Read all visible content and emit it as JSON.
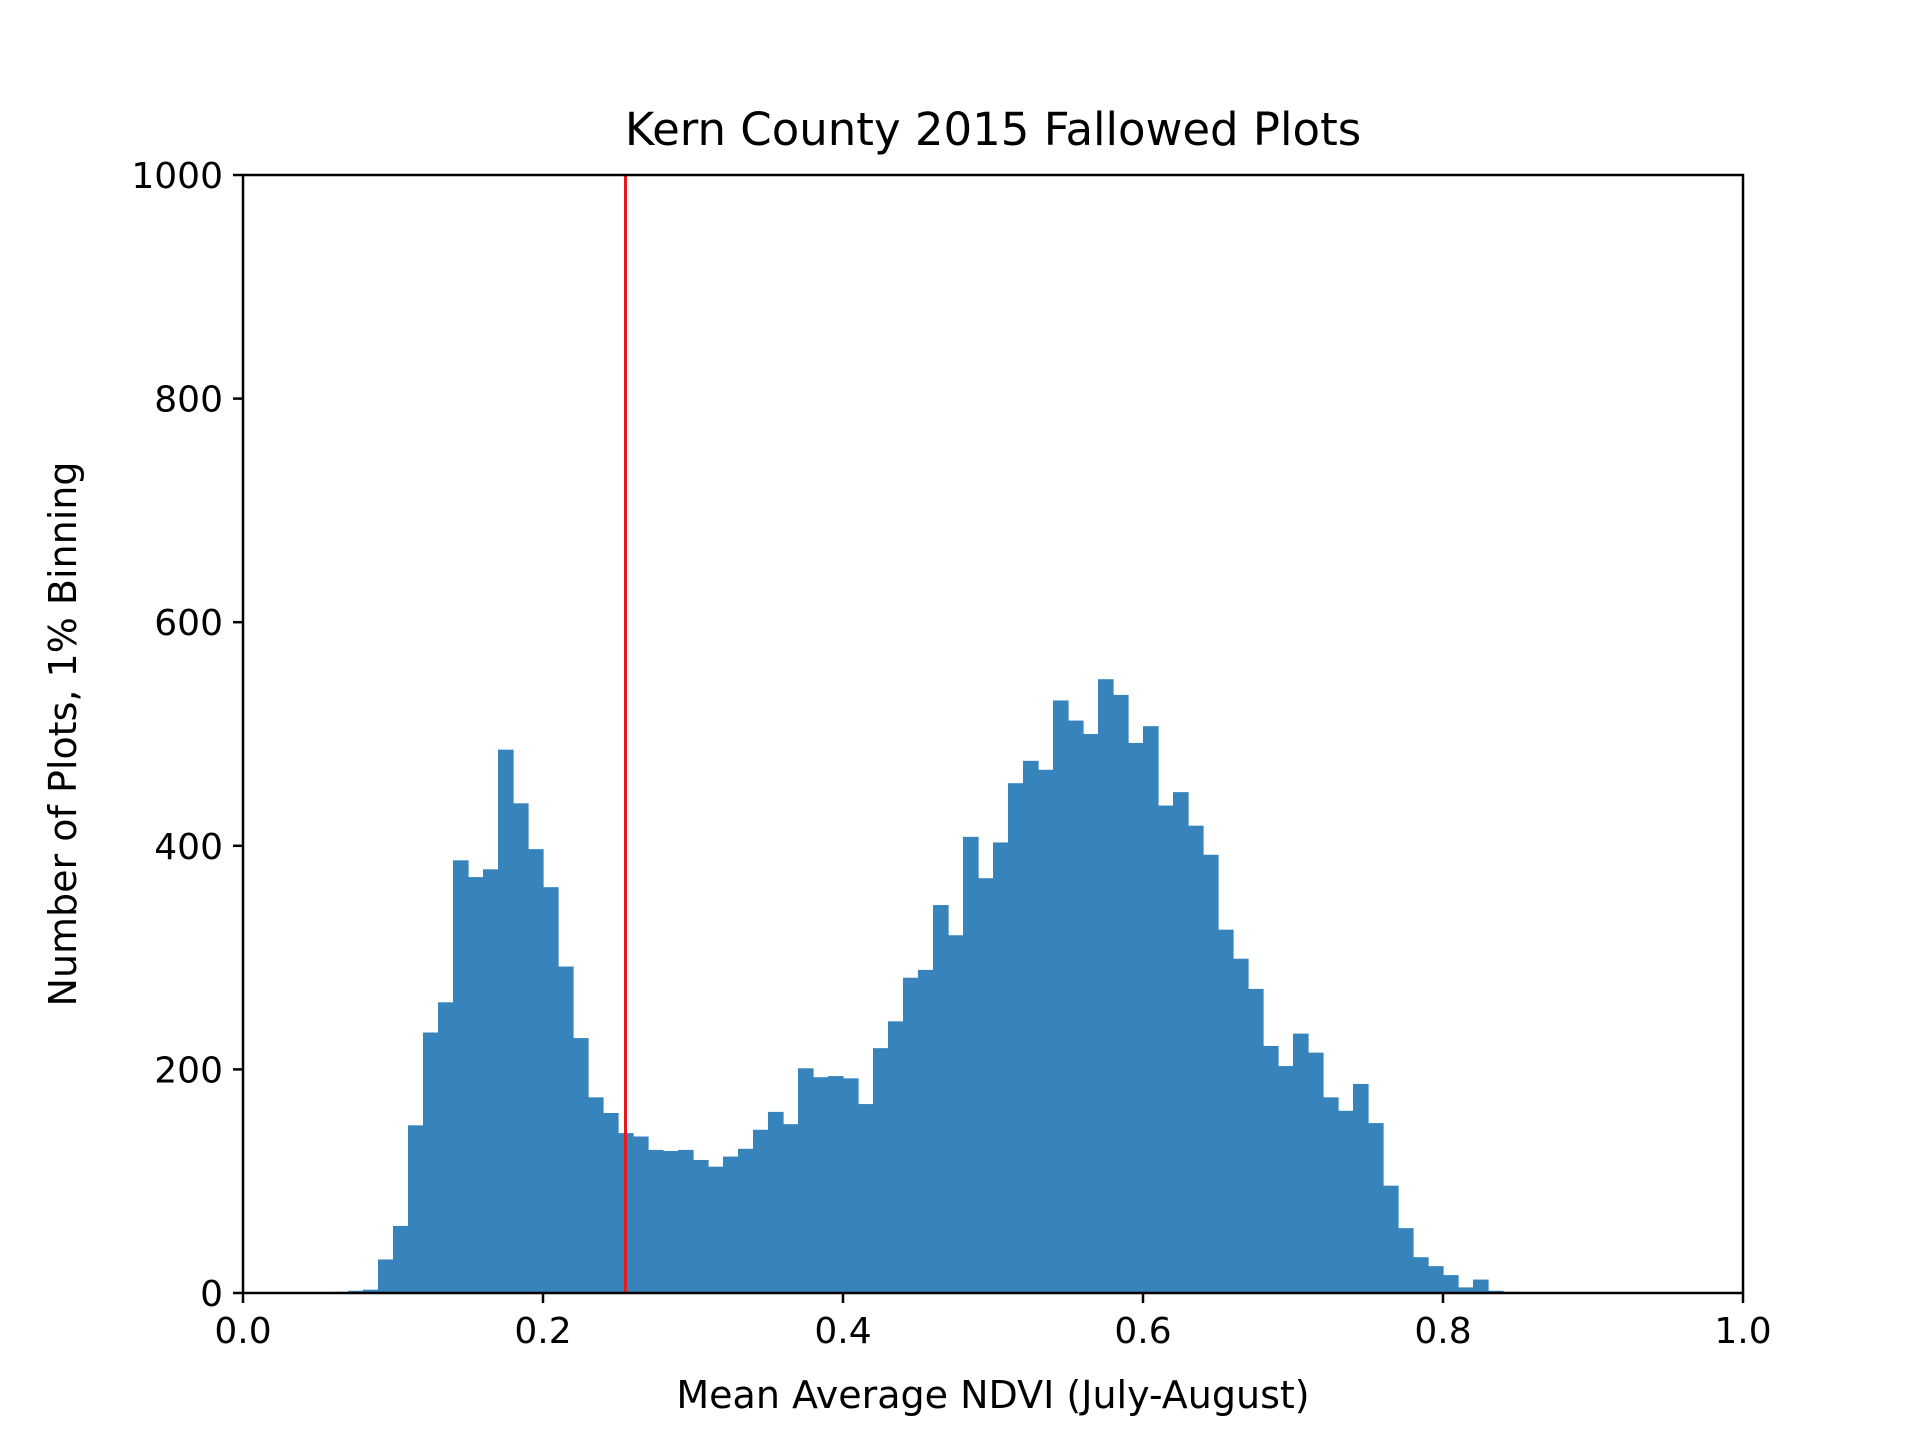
{
  "chart_data": {
    "type": "bar",
    "title": "Kern County 2015 Fallowed Plots",
    "xlabel": "Mean Average NDVI (July-August)",
    "ylabel": "Number of Plots, 1% Binning",
    "xlim": [
      0.0,
      1.0
    ],
    "ylim": [
      0,
      1000
    ],
    "xticks": [
      "0.0",
      "0.2",
      "0.4",
      "0.6",
      "0.8",
      "1.0"
    ],
    "yticks": [
      "0",
      "200",
      "400",
      "600",
      "800",
      "1000"
    ],
    "grid": false,
    "bar_color": "#3783bb",
    "bin_width": 0.01,
    "bins": {
      "start": 0.06,
      "counts": [
        1,
        2,
        3,
        30,
        60,
        150,
        233,
        260,
        387,
        372,
        379,
        486,
        438,
        397,
        363,
        292,
        228,
        175,
        161,
        143,
        140,
        128,
        127,
        128,
        119,
        113,
        122,
        129,
        146,
        162,
        151,
        201,
        193,
        194,
        192,
        169,
        219,
        243,
        282,
        289,
        347,
        320,
        408,
        371,
        403,
        456,
        476,
        468,
        530,
        512,
        500,
        549,
        535,
        492,
        507,
        436,
        448,
        418,
        392,
        325,
        299,
        272,
        221,
        203,
        232,
        215,
        175,
        163,
        187,
        152,
        96,
        58,
        32,
        24,
        16,
        5,
        12,
        2,
        1
      ]
    },
    "reference_line": {
      "x": 0.255,
      "color": "#e41a1c"
    }
  }
}
